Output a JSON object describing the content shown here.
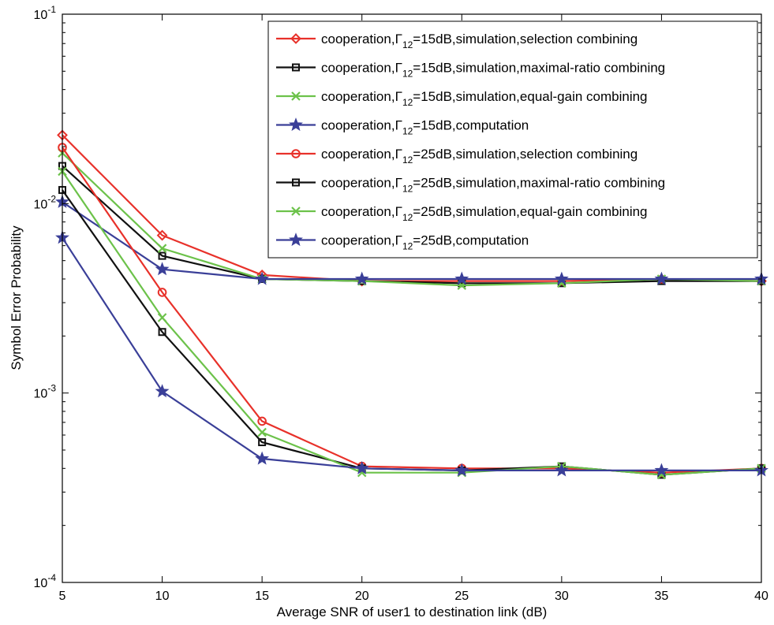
{
  "chart_data": {
    "type": "line",
    "xlabel": "Average SNR of user1 to destination link (dB)",
    "ylabel": "Symbol Error Probability",
    "xlim": [
      5,
      40
    ],
    "ylim": [
      0.0001,
      0.1
    ],
    "yscale": "log",
    "grid": false,
    "legend_position": "top-right",
    "x_ticks": [
      "5",
      "10",
      "15",
      "20",
      "25",
      "30",
      "35",
      "40"
    ],
    "y_ticks": [
      {
        "base": "10",
        "exp": "-4",
        "value": 0.0001
      },
      {
        "base": "10",
        "exp": "-3",
        "value": 0.001
      },
      {
        "base": "10",
        "exp": "-2",
        "value": 0.01
      },
      {
        "base": "10",
        "exp": "-1",
        "value": 0.1
      }
    ],
    "x": [
      5,
      10,
      15,
      20,
      25,
      30,
      35,
      40
    ],
    "series": [
      {
        "name": "cooperation,Γ12=15dB,simulation,selection combining",
        "legend_parts": {
          "pre": "cooperation,Γ",
          "sub": "12",
          "post": "=15dB,simulation,selection combining"
        },
        "color": "#e8312a",
        "marker": "diamond",
        "values": [
          0.023,
          0.0068,
          0.0042,
          0.0039,
          0.0039,
          0.0039,
          0.004,
          0.0039
        ]
      },
      {
        "name": "cooperation,Γ12=15dB,simulation,maximal-ratio combining",
        "legend_parts": {
          "pre": "cooperation,Γ",
          "sub": "12",
          "post": "=15dB,simulation,maximal-ratio combining"
        },
        "color": "#111111",
        "marker": "square",
        "values": [
          0.0158,
          0.0053,
          0.004,
          0.0039,
          0.0038,
          0.0038,
          0.0039,
          0.0039
        ]
      },
      {
        "name": "cooperation,Γ12=15dB,simulation,equal-gain combining",
        "legend_parts": {
          "pre": "cooperation,Γ",
          "sub": "12",
          "post": "=15dB,simulation,equal-gain combining"
        },
        "color": "#6cc24a",
        "marker": "x",
        "values": [
          0.0185,
          0.0058,
          0.004,
          0.0039,
          0.0037,
          0.0038,
          0.004,
          0.0039
        ]
      },
      {
        "name": "cooperation,Γ12=15dB,computation",
        "legend_parts": {
          "pre": "cooperation,Γ",
          "sub": "12",
          "post": "=15dB,computation"
        },
        "color": "#3a3f98",
        "marker": "star",
        "values": [
          0.0102,
          0.0045,
          0.004,
          0.004,
          0.004,
          0.004,
          0.004,
          0.004
        ]
      },
      {
        "name": "cooperation,Γ12=25dB,simulation,selection combining",
        "legend_parts": {
          "pre": "cooperation,Γ",
          "sub": "12",
          "post": "=25dB,simulation,selection combining"
        },
        "color": "#e8312a",
        "marker": "circle",
        "values": [
          0.0198,
          0.0034,
          0.00071,
          0.00041,
          0.0004,
          0.0004,
          0.00038,
          0.0004
        ]
      },
      {
        "name": "cooperation,Γ12=25dB,simulation,maximal-ratio combining",
        "legend_parts": {
          "pre": "cooperation,Γ",
          "sub": "12",
          "post": "=25dB,simulation,maximal-ratio combining"
        },
        "color": "#111111",
        "marker": "square",
        "values": [
          0.0118,
          0.0021,
          0.00055,
          0.0004,
          0.00039,
          0.00041,
          0.00037,
          0.0004
        ]
      },
      {
        "name": "cooperation,Γ12=25dB,simulation,equal-gain combining",
        "legend_parts": {
          "pre": "cooperation,Γ",
          "sub": "12",
          "post": "=25dB,simulation,equal-gain combining"
        },
        "color": "#6cc24a",
        "marker": "x",
        "values": [
          0.0148,
          0.0025,
          0.00062,
          0.00038,
          0.00038,
          0.00041,
          0.00037,
          0.0004
        ]
      },
      {
        "name": "cooperation,Γ12=25dB,computation",
        "legend_parts": {
          "pre": "cooperation,Γ",
          "sub": "12",
          "post": "=25dB,computation"
        },
        "color": "#3a3f98",
        "marker": "star",
        "values": [
          0.0066,
          0.00102,
          0.00045,
          0.0004,
          0.00039,
          0.00039,
          0.00039,
          0.00039
        ]
      }
    ]
  }
}
